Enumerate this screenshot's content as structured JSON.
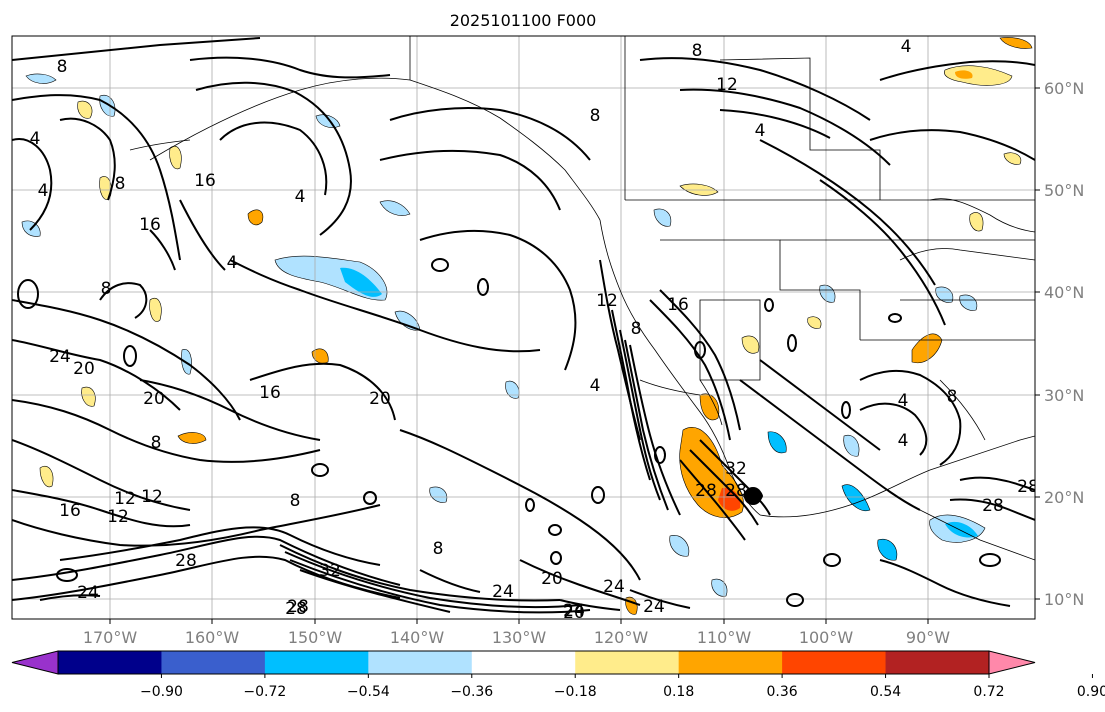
{
  "title": "2025101100 F000",
  "lon_ticks": [
    "170°W",
    "160°W",
    "150°W",
    "140°W",
    "130°W",
    "120°W",
    "110°W",
    "100°W",
    "90°W"
  ],
  "lat_ticks": [
    "60°N",
    "50°N",
    "40°N",
    "30°N",
    "20°N",
    "10°N"
  ],
  "colorbar": {
    "colors": [
      "#9932cc",
      "#00008b",
      "#3a5fcd",
      "#00bfff",
      "#b0e2ff",
      "#ffffff",
      "#ffec8b",
      "#ffa500",
      "#ff4500",
      "#b22222",
      "#ff88aa"
    ],
    "ticks": [
      "−0.90",
      "−0.72",
      "−0.54",
      "−0.36",
      "−0.18",
      "0.18",
      "0.36",
      "0.54",
      "0.72",
      "0.90"
    ]
  },
  "contour_labels": [
    "8",
    "8",
    "12",
    "4",
    "4",
    "4",
    "8",
    "4",
    "8",
    "16",
    "16",
    "4",
    "4",
    "12",
    "16",
    "8",
    "12",
    "24",
    "24",
    "20",
    "20",
    "16",
    "20",
    "8",
    "16",
    "12",
    "12",
    "8",
    "8",
    "28",
    "28",
    "24",
    "32",
    "28",
    "28",
    "24",
    "20",
    "20",
    "24",
    "24",
    "4",
    "8",
    "32",
    "28",
    "4",
    "8",
    "4",
    "28",
    "28"
  ],
  "marker": "storm-center"
}
